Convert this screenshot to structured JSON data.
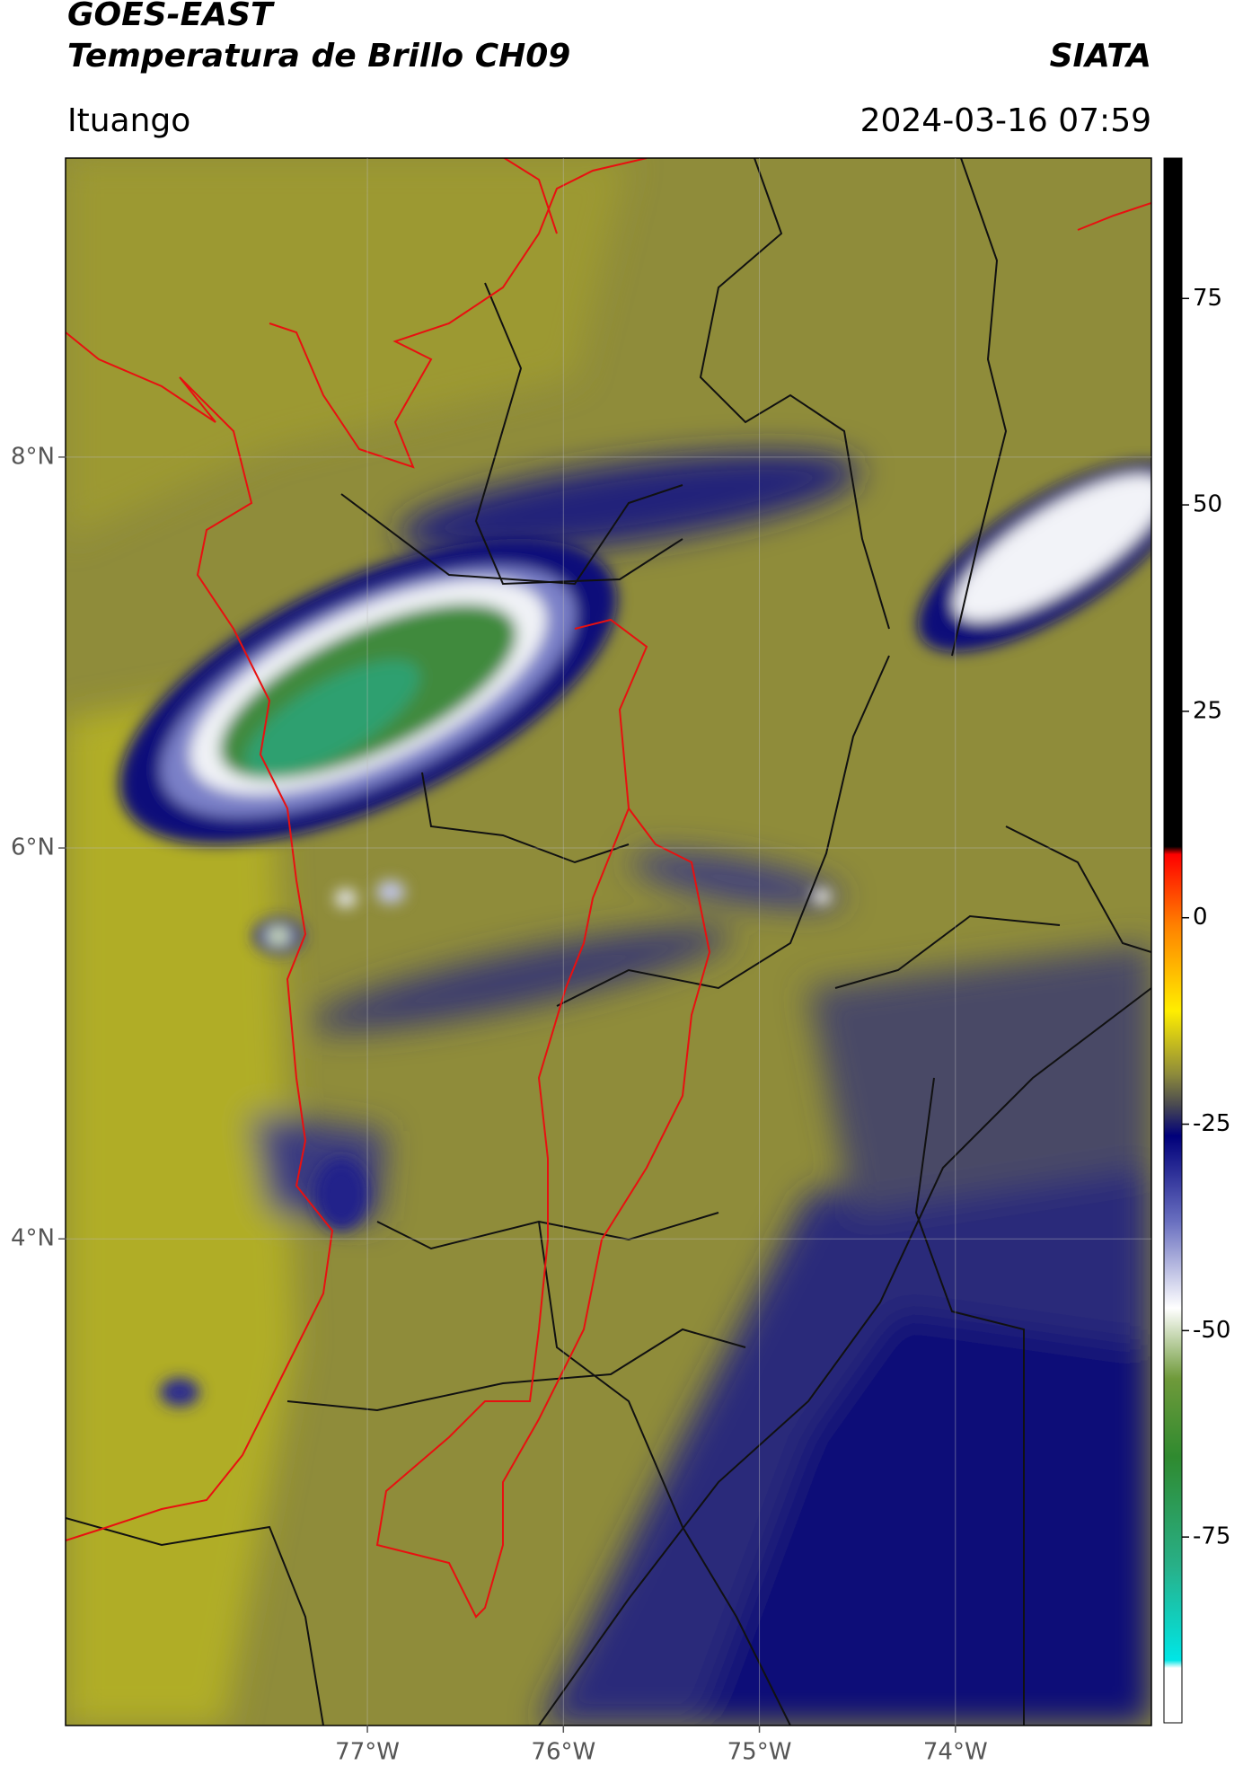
{
  "header": {
    "title": "GOES-EAST",
    "subtitle": "Temperatura de Brillo CH09",
    "org": "SIATA",
    "location": "Ituango",
    "datetime": "2024-03-16 07:59"
  },
  "map": {
    "lonlim": [
      -78.54,
      -73.0
    ],
    "latlim": [
      1.51,
      9.53
    ],
    "lon_ticks": [
      {
        "value": -77,
        "label": "77°W"
      },
      {
        "value": -76,
        "label": "76°W"
      },
      {
        "value": -75,
        "label": "75°W"
      },
      {
        "value": -74,
        "label": "74°W"
      }
    ],
    "lat_ticks": [
      {
        "value": 8,
        "label": "8°N"
      },
      {
        "value": 6,
        "label": "6°N"
      },
      {
        "value": 4,
        "label": "4°N"
      }
    ]
  },
  "colorbar": {
    "clim": [
      -97.5,
      92
    ],
    "ticks": [
      75,
      50,
      25,
      0,
      -25,
      -50,
      -75
    ]
  }
}
